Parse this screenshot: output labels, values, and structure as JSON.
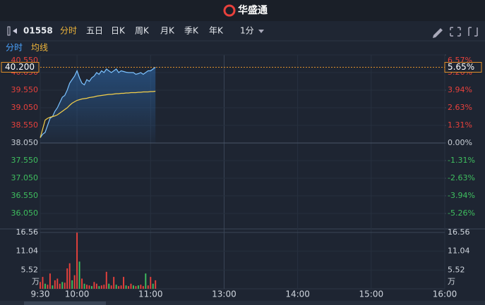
{
  "brand": "华盛通",
  "toolbar": {
    "code": "01558",
    "tabs": [
      "分时",
      "五日",
      "日K",
      "周K",
      "月K",
      "季K",
      "年K",
      "1分"
    ]
  },
  "subtabs": [
    "分时",
    "均线"
  ],
  "chart_data": [
    {
      "type": "line",
      "x": [
        0,
        2,
        4,
        6,
        8,
        10,
        12,
        14,
        16,
        18,
        20,
        22,
        24,
        26,
        28,
        30,
        32,
        34,
        36,
        38,
        40,
        42,
        44,
        46,
        48,
        50,
        52,
        54,
        56,
        58,
        60,
        62,
        64,
        66,
        68,
        70,
        72,
        74,
        76,
        78,
        80,
        82,
        84,
        86,
        88,
        90,
        92,
        94
      ],
      "xlim": [
        0,
        330
      ],
      "xticks": [
        {
          "value": 0,
          "label": "9:30"
        },
        {
          "value": 30,
          "label": "10:00"
        },
        {
          "value": 90,
          "label": "11:00"
        },
        {
          "value": 150,
          "label": "13:00"
        },
        {
          "value": 210,
          "label": "14:00"
        },
        {
          "value": 270,
          "label": "15:00"
        },
        {
          "value": 330,
          "label": "16:00"
        }
      ],
      "ylim": [
        35.71,
        40.55
      ],
      "yticks": [
        {
          "value": 40.55,
          "label": "40.550"
        },
        {
          "value": 40.05,
          "label": "40.050"
        },
        {
          "value": 39.55,
          "label": "39.550"
        },
        {
          "value": 39.05,
          "label": "39.050"
        },
        {
          "value": 38.55,
          "label": "38.550"
        },
        {
          "value": 38.05,
          "label": "38.050"
        },
        {
          "value": 37.55,
          "label": "37.550"
        },
        {
          "value": 37.05,
          "label": "37.050"
        },
        {
          "value": 36.55,
          "label": "36.550"
        },
        {
          "value": 36.05,
          "label": "36.050"
        }
      ],
      "y2lim": [
        -6.15,
        6.57
      ],
      "y2ticks": [
        {
          "value": 6.57,
          "label": "6.57%"
        },
        {
          "value": 5.26,
          "label": "5.26%"
        },
        {
          "value": 3.94,
          "label": "3.94%"
        },
        {
          "value": 2.63,
          "label": "2.63%"
        },
        {
          "value": 1.31,
          "label": "1.31%"
        },
        {
          "value": 0,
          "label": "0.00%"
        },
        {
          "value": -1.31,
          "label": "-1.31%"
        },
        {
          "value": -2.63,
          "label": "-2.63%"
        },
        {
          "value": -3.94,
          "label": "-3.94%"
        },
        {
          "value": -5.26,
          "label": "-5.26%"
        }
      ],
      "current": {
        "value": 40.2,
        "label": "40.200",
        "pct": 5.65,
        "pct_label": "5.65%"
      },
      "up_color": "#e8413c",
      "down_color": "#3fbf5f",
      "series": [
        {
          "color": "#7cc2ff",
          "values": [
            38.2,
            38.3,
            38.35,
            38.55,
            38.75,
            38.8,
            38.95,
            39.05,
            39.2,
            39.35,
            39.4,
            39.55,
            39.75,
            39.85,
            39.95,
            40.1,
            39.9,
            39.75,
            39.7,
            39.85,
            39.8,
            39.9,
            39.95,
            40.05,
            40.0,
            40.1,
            40.05,
            40.15,
            40.1,
            40.05,
            40.1,
            40.15,
            40.05,
            40.1,
            40.08,
            40.06,
            40.05,
            40.05,
            40.05,
            40.0,
            40.02,
            40.05,
            40.0,
            40.05,
            40.1,
            40.1,
            40.15,
            40.2
          ]
        },
        {
          "color": "#f5d04a",
          "values": [
            38.2,
            38.45,
            38.7,
            38.75,
            38.78,
            38.8,
            38.82,
            38.85,
            38.9,
            38.95,
            39.0,
            39.05,
            39.12,
            39.18,
            39.22,
            39.26,
            39.28,
            39.3,
            39.31,
            39.32,
            39.34,
            39.35,
            39.36,
            39.38,
            39.39,
            39.4,
            39.41,
            39.42,
            39.43,
            39.43,
            39.44,
            39.45,
            39.45,
            39.46,
            39.46,
            39.47,
            39.47,
            39.48,
            39.48,
            39.48,
            39.49,
            39.49,
            39.5,
            39.5,
            39.5,
            39.51,
            39.51,
            39.52
          ]
        }
      ]
    },
    {
      "type": "bar",
      "unit": "万",
      "x": [
        0,
        2,
        4,
        6,
        8,
        10,
        12,
        14,
        16,
        18,
        20,
        22,
        24,
        26,
        28,
        30,
        32,
        34,
        36,
        38,
        40,
        42,
        44,
        46,
        48,
        50,
        52,
        54,
        56,
        58,
        60,
        62,
        64,
        66,
        68,
        70,
        72,
        74,
        76,
        78,
        80,
        82,
        84,
        86,
        88,
        90,
        92,
        94
      ],
      "xlim": [
        0,
        330
      ],
      "values": [
        2.0,
        3.5,
        1.5,
        1.2,
        4.5,
        1.0,
        2.5,
        3.0,
        1.5,
        2.0,
        1.8,
        6.0,
        7.5,
        2.5,
        4.0,
        16.5,
        8.0,
        3.0,
        1.5,
        1.2,
        1.0,
        0.8,
        2.0,
        1.5,
        0.8,
        1.0,
        1.2,
        5.0,
        1.5,
        1.0,
        3.5,
        1.2,
        0.8,
        1.0,
        3.5,
        1.0,
        0.8,
        1.5,
        1.0,
        0.8,
        1.0,
        1.2,
        0.8,
        4.5,
        1.0,
        3.5,
        1.5,
        2.5
      ],
      "bar_colors": [
        "#e8413c",
        "#e8413c",
        "#3fbf5f",
        "#e8413c",
        "#e8413c",
        "#3fbf5f",
        "#e8413c",
        "#e8413c",
        "#e8413c",
        "#3fbf5f",
        "#e8413c",
        "#e8413c",
        "#e8413c",
        "#3fbf5f",
        "#e8413c",
        "#e8413c",
        "#3fbf5f",
        "#e8413c",
        "#3fbf5f",
        "#e8413c",
        "#e8413c",
        "#3fbf5f",
        "#e8413c",
        "#e8413c",
        "#3fbf5f",
        "#e8413c",
        "#e8413c",
        "#e8413c",
        "#3fbf5f",
        "#e8413c",
        "#e8413c",
        "#3fbf5f",
        "#e8413c",
        "#e8413c",
        "#e8413c",
        "#3fbf5f",
        "#e8413c",
        "#e8413c",
        "#3fbf5f",
        "#e8413c",
        "#3fbf5f",
        "#e8413c",
        "#e8413c",
        "#3fbf5f",
        "#e8413c",
        "#e8413c",
        "#3fbf5f",
        "#e8413c"
      ],
      "ylim": [
        0,
        16.56
      ],
      "yticks": [
        16.56,
        11.04,
        5.52
      ]
    }
  ]
}
